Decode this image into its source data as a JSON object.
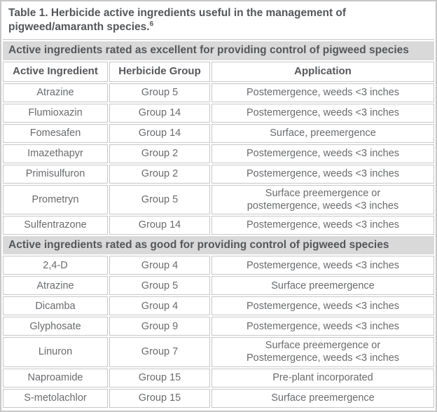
{
  "table": {
    "title": "Table 1. Herbicide active ingredients useful in the management of pigweed/amaranth species.",
    "title_superscript": "6",
    "columns": [
      "Active Ingredient",
      "Herbicide Group",
      "Application"
    ],
    "colors": {
      "border": "#c7c7c7",
      "section_header_bg": "#d9d9d9",
      "heading_text": "#55575b",
      "body_text": "#696b6e"
    },
    "sections": [
      {
        "header": "Active ingredients rated as excellent for providing control of pigweed species",
        "show_column_headers": true,
        "rows": [
          {
            "active_ingredient": "Atrazine",
            "herbicide_group": "Group 5",
            "application": "Postemergence, weeds <3 inches"
          },
          {
            "active_ingredient": "Flumioxazin",
            "herbicide_group": "Group 14",
            "application": "Postemergence, weeds <3 inches"
          },
          {
            "active_ingredient": "Fomesafen",
            "herbicide_group": "Group 14",
            "application": "Surface, preemergence"
          },
          {
            "active_ingredient": "Imazethapyr",
            "herbicide_group": "Group 2",
            "application": "Postemergence, weeds <3 inches"
          },
          {
            "active_ingredient": "Primisulfuron",
            "herbicide_group": "Group 2",
            "application": "Postemergence, weeds <3 inches"
          },
          {
            "active_ingredient": "Prometryn",
            "herbicide_group": "Group 5",
            "application": "Surface preemergence or\npostemergence, weeds <3 inches"
          },
          {
            "active_ingredient": "Sulfentrazone",
            "herbicide_group": "Group 14",
            "application": "Postemergence, weeds <3 inches"
          }
        ]
      },
      {
        "header": "Active ingredients rated as good for providing control of pigweed species",
        "show_column_headers": false,
        "rows": [
          {
            "active_ingredient": "2,4-D",
            "herbicide_group": "Group 4",
            "application": "Postemergence, weeds <3 inches"
          },
          {
            "active_ingredient": "Atrazine",
            "herbicide_group": "Group 5",
            "application": "Surface preemergence"
          },
          {
            "active_ingredient": "Dicamba",
            "herbicide_group": "Group 4",
            "application": "Postemergence, weeds <3 inches"
          },
          {
            "active_ingredient": "Glyphosate",
            "herbicide_group": "Group 9",
            "application": "Postemergence, weeds <3 inches"
          },
          {
            "active_ingredient": "Linuron",
            "herbicide_group": "Group 7",
            "application": "Surface preemergence or\nPostemergence, weeds <3 inches"
          },
          {
            "active_ingredient": "Naproamide",
            "herbicide_group": "Group 15",
            "application": "Pre-plant incorporated"
          },
          {
            "active_ingredient": "S-metolachlor",
            "herbicide_group": "Group 15",
            "application": "Surface preemergence"
          }
        ]
      }
    ]
  }
}
